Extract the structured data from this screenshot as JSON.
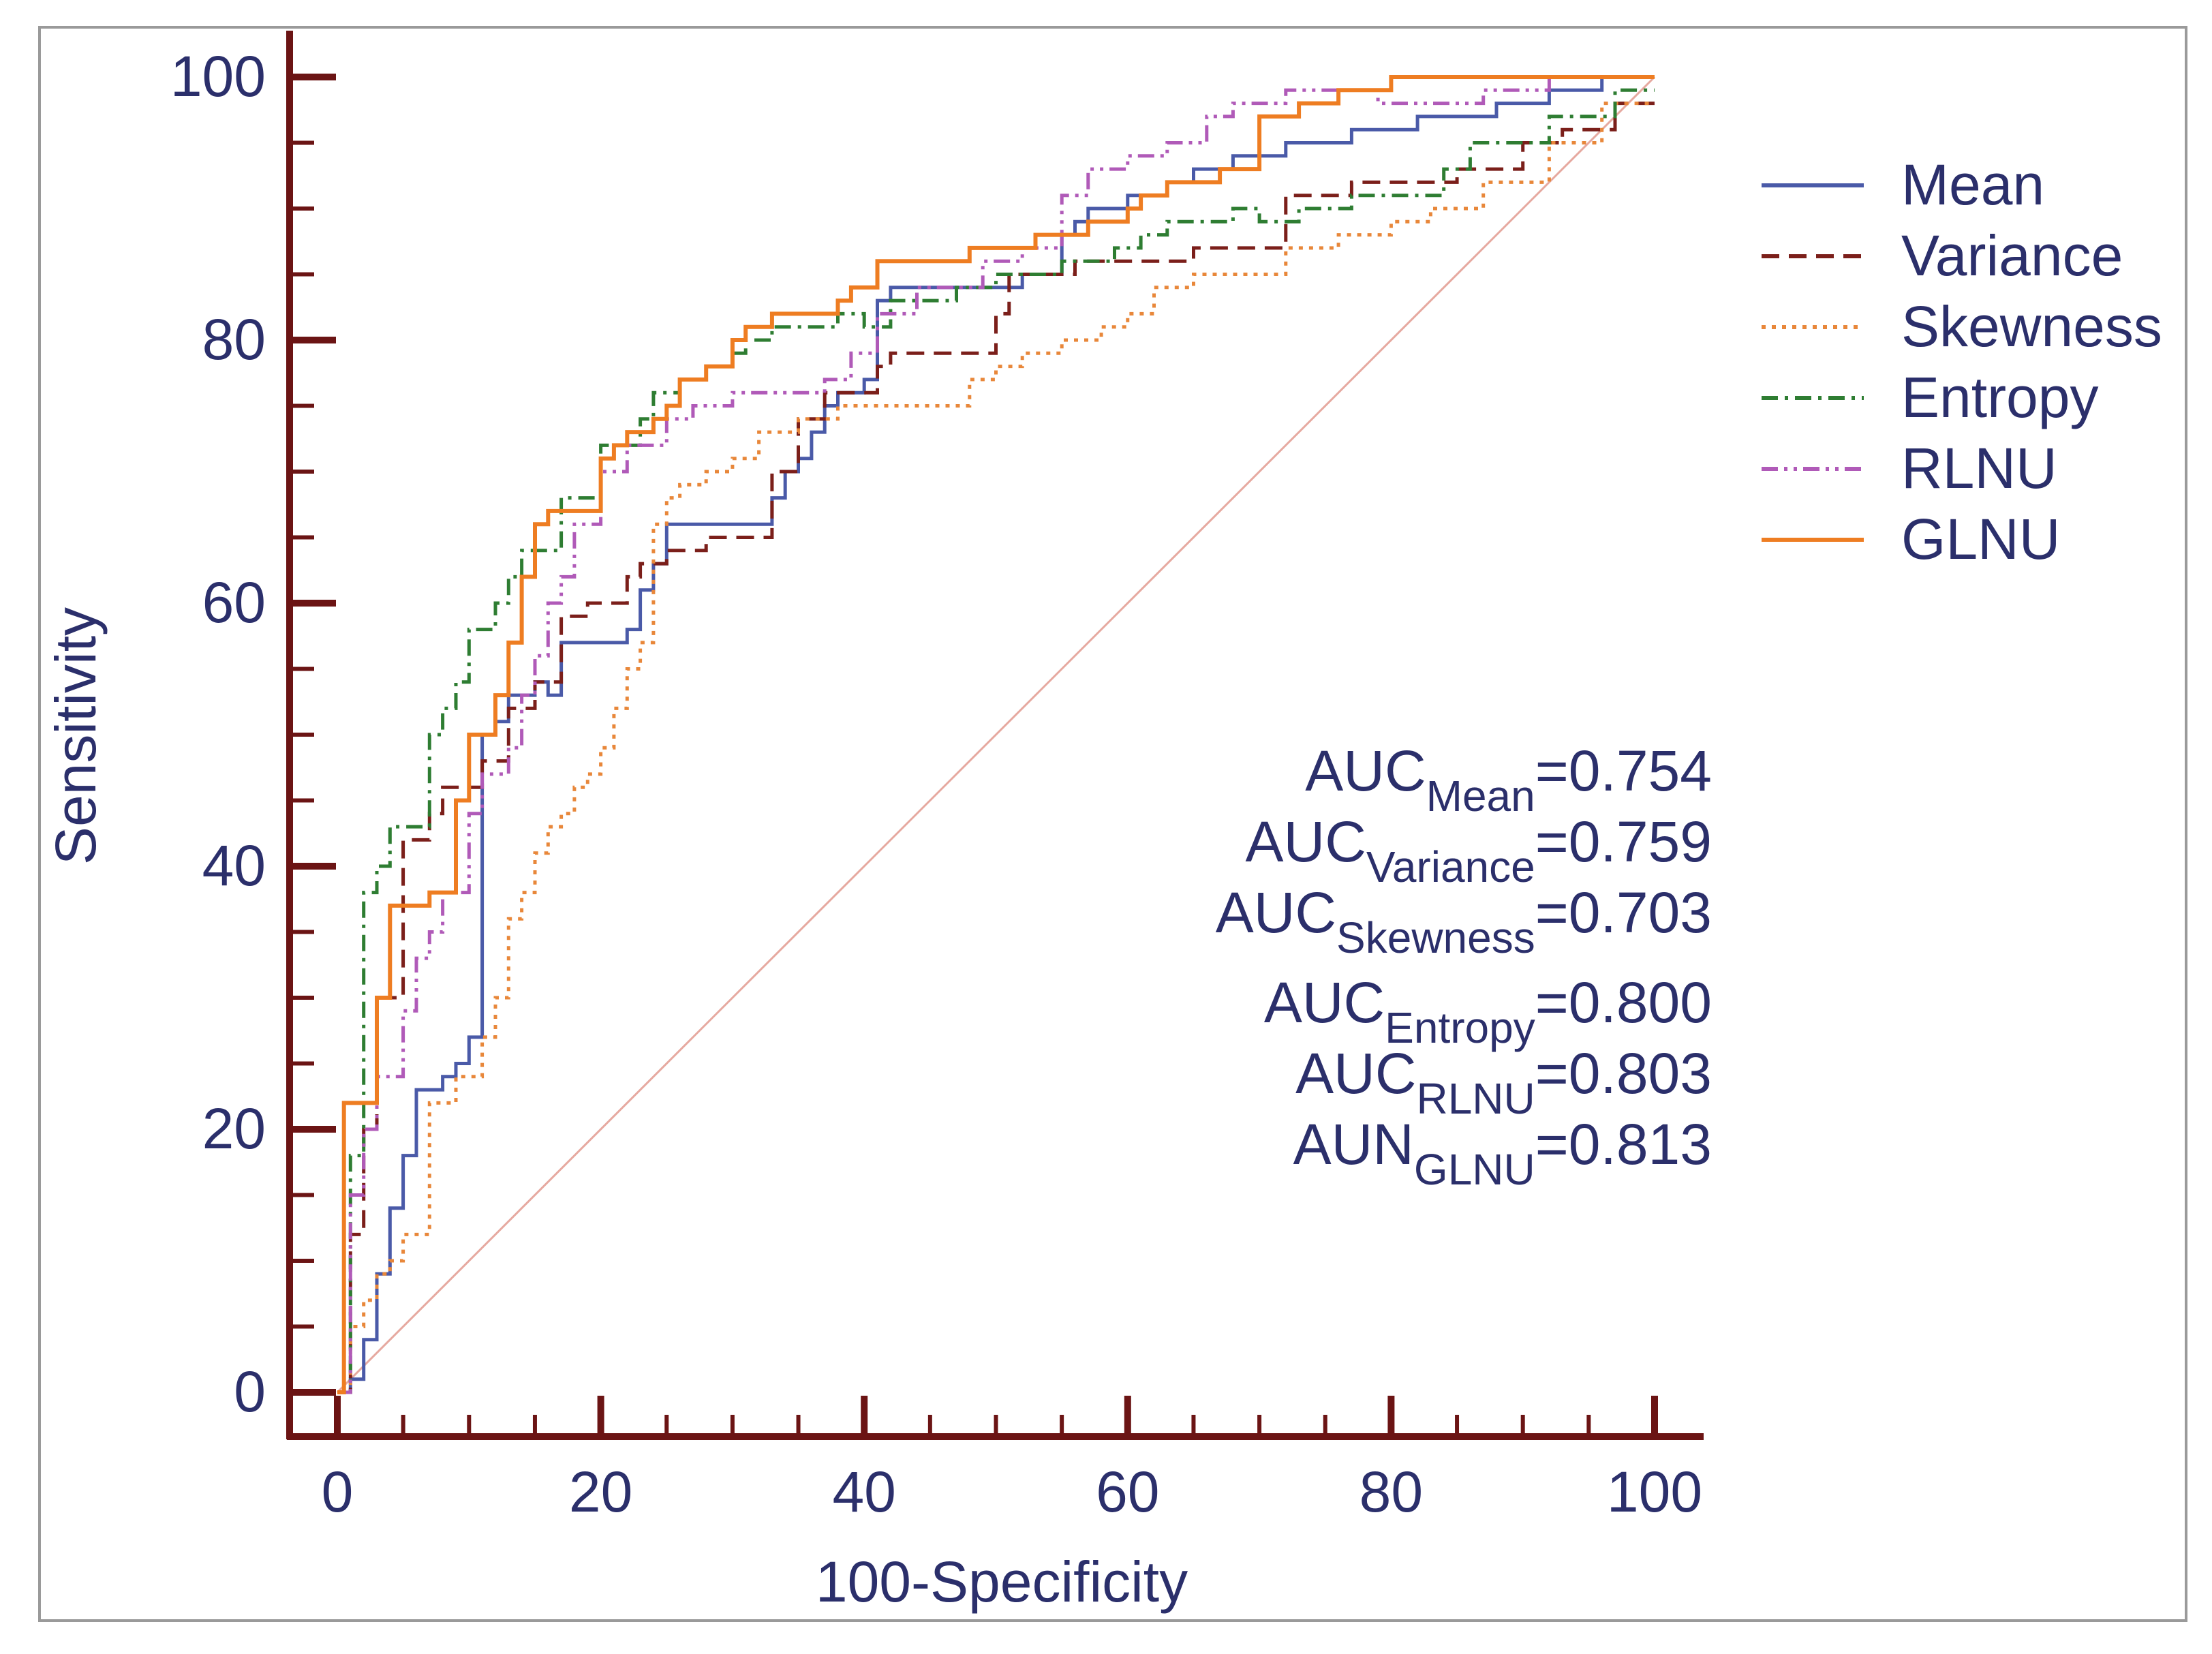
{
  "chart_data": {
    "type": "line",
    "title": "",
    "xlabel": "100-Specificity",
    "ylabel": "Sensitivity",
    "xlim": [
      0,
      100
    ],
    "ylim": [
      0,
      100
    ],
    "xticks": [
      0,
      20,
      40,
      60,
      80,
      100
    ],
    "yticks": [
      0,
      20,
      40,
      60,
      80,
      100
    ],
    "x_tick_labels": [
      "0",
      "20",
      "40",
      "60",
      "80",
      "100"
    ],
    "y_tick_labels": [
      "0",
      "20",
      "40",
      "60",
      "80",
      "100"
    ],
    "minor_tick_step": 5,
    "grid": false,
    "legend_position": "top-right",
    "reference_line": {
      "name": "chance",
      "x": [
        0,
        100
      ],
      "y": [
        0,
        100
      ],
      "color": "#e6a9a0"
    },
    "series": [
      {
        "name": "Mean",
        "color": "#4a5aa8",
        "dash": "solid",
        "x": [
          0,
          1,
          1,
          2,
          2,
          3,
          3,
          4,
          4,
          5,
          5,
          6,
          6,
          8,
          8,
          9,
          9,
          10,
          10,
          11,
          11,
          12,
          12,
          13,
          13,
          15,
          15,
          16,
          16,
          17,
          17,
          22,
          22,
          23,
          23,
          24,
          24,
          25,
          25,
          33,
          33,
          34,
          34,
          35,
          35,
          36,
          36,
          37,
          37,
          38,
          38,
          40,
          40,
          41,
          41,
          42,
          42,
          52,
          52,
          55,
          55,
          56,
          56,
          57,
          57,
          60,
          60,
          63,
          63,
          65,
          65,
          68,
          68,
          72,
          72,
          77,
          77,
          82,
          82,
          88,
          88,
          92,
          92,
          96,
          96,
          99,
          99,
          100
        ],
        "y": [
          0,
          0,
          1,
          1,
          4,
          4,
          9,
          9,
          14,
          14,
          18,
          18,
          23,
          23,
          24,
          24,
          25,
          25,
          27,
          27,
          50,
          50,
          51,
          51,
          53,
          53,
          54,
          54,
          53,
          53,
          57,
          57,
          58,
          58,
          61,
          61,
          63,
          63,
          66,
          66,
          68,
          68,
          70,
          70,
          71,
          71,
          73,
          73,
          75,
          75,
          76,
          76,
          77,
          77,
          83,
          83,
          84,
          84,
          85,
          85,
          88,
          88,
          89,
          89,
          90,
          90,
          91,
          91,
          92,
          92,
          93,
          93,
          94,
          94,
          95,
          95,
          96,
          96,
          97,
          97,
          98,
          98,
          99,
          99,
          100,
          100,
          100,
          100
        ]
      },
      {
        "name": "Variance",
        "color": "#7b1f1a",
        "dash": "dashed",
        "x": [
          0,
          1,
          1,
          2,
          2,
          3,
          3,
          5,
          5,
          7,
          7,
          8,
          8,
          11,
          11,
          13,
          13,
          15,
          15,
          17,
          17,
          19,
          19,
          22,
          22,
          23,
          23,
          25,
          25,
          28,
          28,
          33,
          33,
          35,
          35,
          37,
          37,
          41,
          41,
          42,
          42,
          50,
          50,
          51,
          51,
          56,
          56,
          65,
          65,
          72,
          72,
          77,
          77,
          85,
          85,
          90,
          90,
          93,
          93,
          97,
          97,
          100
        ],
        "y": [
          0,
          0,
          12,
          12,
          20,
          20,
          30,
          30,
          42,
          42,
          44,
          44,
          46,
          46,
          48,
          48,
          52,
          52,
          54,
          54,
          59,
          59,
          60,
          60,
          62,
          62,
          63,
          63,
          64,
          64,
          65,
          65,
          70,
          70,
          74,
          74,
          76,
          76,
          78,
          78,
          79,
          79,
          82,
          82,
          85,
          85,
          86,
          86,
          87,
          87,
          91,
          91,
          92,
          92,
          93,
          93,
          95,
          95,
          96,
          96,
          98,
          98
        ]
      },
      {
        "name": "Skewness",
        "color": "#e8873a",
        "dash": "dotted",
        "x": [
          0,
          1,
          1,
          2,
          2,
          3,
          3,
          4,
          4,
          5,
          5,
          7,
          7,
          9,
          9,
          11,
          11,
          12,
          12,
          13,
          13,
          14,
          14,
          15,
          15,
          16,
          16,
          17,
          17,
          18,
          18,
          19,
          19,
          20,
          20,
          21,
          21,
          22,
          22,
          23,
          23,
          24,
          24,
          25,
          25,
          26,
          26,
          28,
          28,
          30,
          30,
          32,
          32,
          35,
          35,
          38,
          38,
          48,
          48,
          50,
          50,
          52,
          52,
          55,
          55,
          58,
          58,
          60,
          60,
          62,
          62,
          65,
          65,
          72,
          72,
          76,
          76,
          80,
          80,
          83,
          83,
          87,
          87,
          92,
          92,
          96,
          96,
          100
        ],
        "y": [
          0,
          0,
          5,
          5,
          7,
          7,
          9,
          9,
          10,
          10,
          12,
          12,
          22,
          22,
          24,
          24,
          27,
          27,
          30,
          30,
          36,
          36,
          38,
          38,
          41,
          41,
          43,
          43,
          44,
          44,
          46,
          46,
          47,
          47,
          49,
          49,
          52,
          52,
          55,
          55,
          57,
          57,
          66,
          66,
          68,
          68,
          69,
          69,
          70,
          70,
          71,
          71,
          73,
          73,
          74,
          74,
          75,
          75,
          77,
          77,
          78,
          78,
          79,
          79,
          80,
          80,
          81,
          81,
          82,
          82,
          84,
          84,
          85,
          85,
          87,
          87,
          88,
          88,
          89,
          89,
          90,
          90,
          92,
          92,
          95,
          95,
          98,
          98
        ]
      },
      {
        "name": "Entropy",
        "color": "#2e7d32",
        "dash": "dashdot",
        "x": [
          0,
          1,
          1,
          2,
          2,
          3,
          3,
          4,
          4,
          7,
          7,
          8,
          8,
          9,
          9,
          10,
          10,
          12,
          12,
          13,
          13,
          14,
          14,
          17,
          17,
          20,
          20,
          23,
          23,
          24,
          24,
          26,
          26,
          28,
          28,
          30,
          30,
          31,
          31,
          33,
          33,
          38,
          38,
          40,
          40,
          42,
          42,
          47,
          47,
          50,
          50,
          55,
          55,
          59,
          59,
          61,
          61,
          63,
          63,
          68,
          68,
          70,
          70,
          73,
          73,
          77,
          77,
          84,
          84,
          86,
          86,
          92,
          92,
          97,
          97,
          100
        ],
        "y": [
          0,
          0,
          18,
          18,
          38,
          38,
          40,
          40,
          43,
          43,
          50,
          50,
          52,
          52,
          54,
          54,
          58,
          58,
          60,
          60,
          62,
          62,
          64,
          64,
          68,
          68,
          72,
          72,
          74,
          74,
          76,
          76,
          77,
          77,
          78,
          78,
          79,
          79,
          80,
          80,
          81,
          81,
          82,
          82,
          81,
          81,
          83,
          83,
          84,
          84,
          85,
          85,
          86,
          86,
          87,
          87,
          88,
          88,
          89,
          89,
          90,
          90,
          89,
          89,
          90,
          90,
          91,
          91,
          93,
          93,
          95,
          95,
          97,
          97,
          99,
          99
        ]
      },
      {
        "name": "RLNU",
        "color": "#b05ab8",
        "dash": "dashdotdot",
        "x": [
          0,
          1,
          1,
          2,
          2,
          3,
          3,
          5,
          5,
          6,
          6,
          7,
          7,
          8,
          8,
          10,
          10,
          11,
          11,
          13,
          13,
          14,
          14,
          15,
          15,
          16,
          16,
          17,
          17,
          18,
          18,
          20,
          20,
          22,
          22,
          25,
          25,
          27,
          27,
          30,
          30,
          33,
          33,
          37,
          37,
          39,
          39,
          41,
          41,
          44,
          44,
          49,
          49,
          52,
          52,
          55,
          55,
          57,
          57,
          60,
          60,
          63,
          63,
          66,
          66,
          68,
          68,
          72,
          72,
          79,
          79,
          87,
          87,
          92,
          92,
          100
        ],
        "y": [
          0,
          0,
          15,
          15,
          20,
          20,
          24,
          24,
          29,
          29,
          33,
          33,
          35,
          35,
          38,
          38,
          44,
          44,
          47,
          47,
          49,
          49,
          53,
          53,
          56,
          56,
          60,
          60,
          62,
          62,
          66,
          66,
          70,
          70,
          72,
          72,
          74,
          74,
          75,
          75,
          76,
          76,
          76,
          76,
          77,
          77,
          79,
          79,
          82,
          82,
          84,
          84,
          86,
          86,
          87,
          87,
          91,
          91,
          93,
          93,
          94,
          94,
          95,
          95,
          97,
          97,
          98,
          98,
          99,
          99,
          98,
          98,
          99,
          99,
          100,
          100
        ]
      },
      {
        "name": "GLNU",
        "color": "#ee7d22",
        "dash": "solid",
        "x": [
          0,
          0.5,
          0.5,
          3,
          3,
          4,
          4,
          7,
          7,
          9,
          9,
          10,
          10,
          12,
          12,
          13,
          13,
          14,
          14,
          15,
          15,
          16,
          16,
          20,
          20,
          21,
          21,
          22,
          22,
          24,
          24,
          25,
          25,
          26,
          26,
          28,
          28,
          30,
          30,
          31,
          31,
          33,
          33,
          38,
          38,
          39,
          39,
          41,
          41,
          48,
          48,
          53,
          53,
          57,
          57,
          60,
          60,
          61,
          61,
          63,
          63,
          67,
          67,
          70,
          70,
          73,
          73,
          76,
          76,
          80,
          80,
          100
        ],
        "y": [
          0,
          0,
          22,
          22,
          30,
          30,
          37,
          37,
          38,
          38,
          45,
          45,
          50,
          50,
          53,
          53,
          57,
          57,
          62,
          62,
          66,
          66,
          67,
          67,
          71,
          71,
          72,
          72,
          73,
          73,
          74,
          74,
          75,
          75,
          77,
          77,
          78,
          78,
          80,
          80,
          81,
          81,
          82,
          82,
          83,
          83,
          84,
          84,
          86,
          86,
          87,
          87,
          88,
          88,
          89,
          89,
          90,
          90,
          91,
          91,
          92,
          92,
          93,
          93,
          97,
          97,
          98,
          98,
          99,
          99,
          100,
          100
        ]
      }
    ],
    "annotations": [
      {
        "prefix": "AUC",
        "subscript": "Mean",
        "value": "=0.754"
      },
      {
        "prefix": "AUC",
        "subscript": "Variance",
        "value": "=0.759"
      },
      {
        "prefix": "AUC",
        "subscript": "Skewness",
        "value": "=0.703"
      },
      {
        "prefix": "AUC",
        "subscript": "Entropy",
        "value": "=0.800"
      },
      {
        "prefix": "AUC",
        "subscript": "RLNU",
        "value": "=0.803"
      },
      {
        "prefix": "AUN",
        "subscript": "GLNU",
        "value": "=0.813"
      }
    ],
    "colors": {
      "axis": "#6b1414",
      "text": "#2b2f6b",
      "frame": "#9a9a9a"
    }
  }
}
